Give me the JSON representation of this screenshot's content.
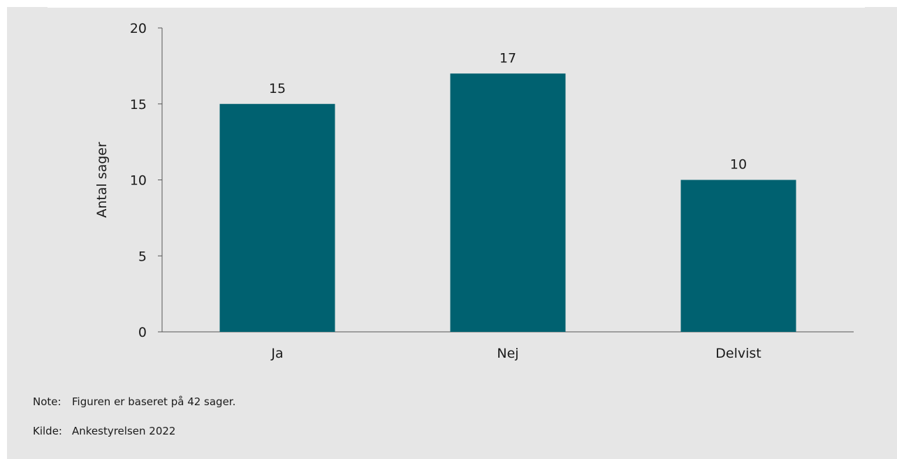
{
  "chart_data": {
    "type": "bar",
    "categories": [
      "Ja",
      "Nej",
      "Delvist"
    ],
    "values": [
      15,
      17,
      10
    ],
    "data_labels": [
      "15",
      "17",
      "10"
    ],
    "title": "",
    "xlabel": "",
    "ylabel": "Antal sager",
    "ylim": [
      0,
      20
    ],
    "yticks": [
      0,
      5,
      10,
      15,
      20
    ],
    "grid": false,
    "legend": "none",
    "bar_color": "#006170"
  },
  "notes": {
    "note_label": "Note:",
    "note_text": "Figuren er baseret på 42 sager.",
    "source_label": "Kilde:",
    "source_text": "Ankestyrelsen 2022"
  }
}
